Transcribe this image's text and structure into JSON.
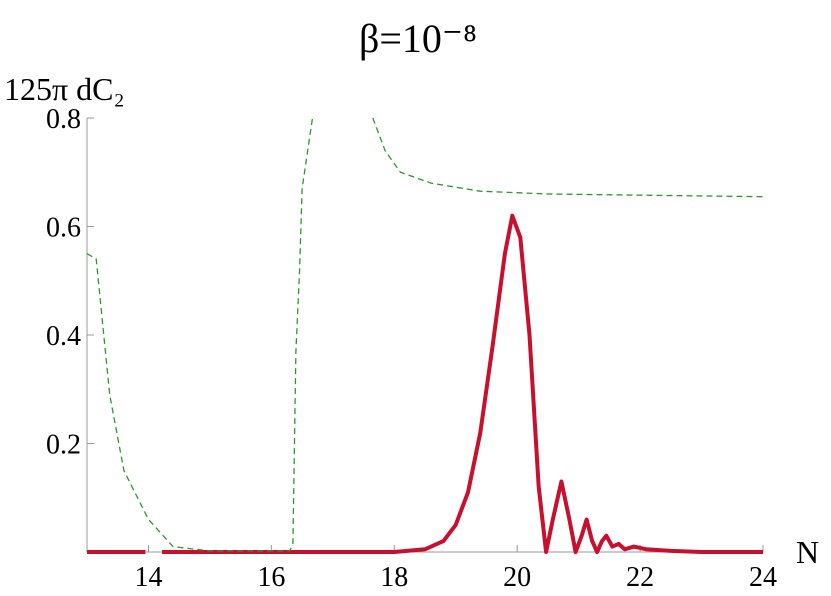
{
  "chart_data": {
    "type": "line",
    "title": "β=10⁻⁸",
    "y_label": "125π dC₂",
    "x_label": "N",
    "xlim": [
      13,
      24
    ],
    "xticks": [
      14,
      16,
      18,
      20,
      22,
      24
    ],
    "ylim": [
      0,
      0.8
    ],
    "yticks": [
      0.2,
      0.4,
      0.6,
      0.8
    ],
    "series": [
      {
        "color": "#c8102e",
        "style": "solid",
        "width": 4,
        "x": [
          13,
          13.95,
          14.08,
          14.22,
          18,
          18.5,
          18.8,
          19.0,
          19.2,
          19.4,
          19.6,
          19.8,
          19.92,
          20.05,
          20.2,
          20.35,
          20.47,
          20.58,
          20.72,
          20.85,
          20.95,
          21.05,
          21.13,
          21.22,
          21.3,
          21.38,
          21.45,
          21.55,
          21.65,
          21.75,
          21.9,
          22.1,
          22.5,
          23,
          24
        ],
        "values": [
          0,
          0,
          null,
          0,
          0,
          0.005,
          0.02,
          0.05,
          0.11,
          0.22,
          0.38,
          0.55,
          0.62,
          0.58,
          0.4,
          0.12,
          0,
          0.06,
          0.13,
          0.06,
          0,
          0.03,
          0.06,
          0.02,
          0,
          0.02,
          0.03,
          0.01,
          0.015,
          0.005,
          0.01,
          0.005,
          0.002,
          0,
          0
        ]
      },
      {
        "color": "#2a9a2a",
        "style": "dashed",
        "width": 1.3,
        "x": [
          13,
          13.15,
          13.37,
          13.6,
          14,
          14.4,
          15,
          16.3,
          16.35,
          16.4,
          16.46,
          16.5,
          16.67,
          17.2,
          17.65,
          17.85,
          18.1,
          18.6,
          19.4,
          20.5,
          24
        ],
        "values": [
          0.55,
          0.54,
          0.29,
          0.15,
          0.06,
          0.01,
          0.002,
          0.002,
          0.015,
          0.37,
          0.52,
          0.67,
          0.8,
          null,
          0.8,
          0.74,
          0.7,
          0.68,
          0.665,
          0.66,
          0.655
        ]
      }
    ]
  }
}
